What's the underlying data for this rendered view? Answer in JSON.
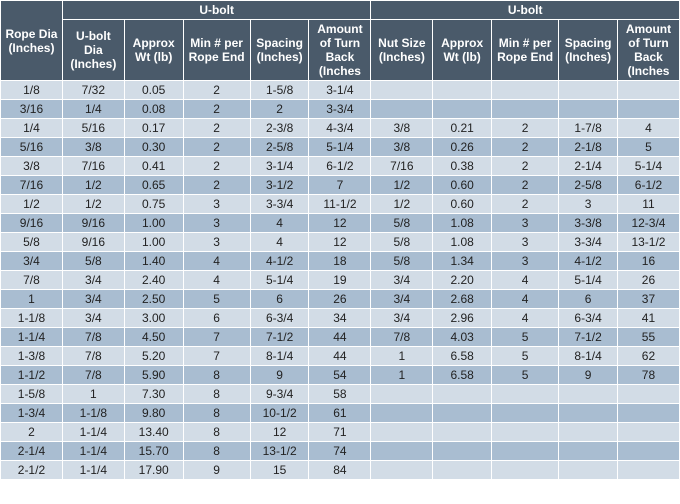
{
  "header": {
    "group1": "U-bolt",
    "group2": "U-bolt",
    "cols": [
      "Rope Dia (Inches)",
      "U-bolt Dia (Inches)",
      "Approx Wt (lb)",
      "Min # per Rope End",
      "Spacing (Inches)",
      "Amount of Turn Back (Inches",
      "Nut Size (Inches)",
      "Approx Wt (lb)",
      "Min # per Rope End",
      "Spacing (Inches)",
      "Amount of Turn Back (Inches"
    ]
  },
  "colors": {
    "header_bg": "#4a5a6a",
    "header_fg": "#ffffff",
    "row_odd": "#d2dce6",
    "row_even": "#a9bdd1",
    "border": "#ffffff"
  },
  "colWidths": [
    "58",
    "58",
    "55",
    "63",
    "55",
    "58",
    "58",
    "55",
    "63",
    "55",
    "58"
  ],
  "rows": [
    [
      "1/8",
      "7/32",
      "0.05",
      "2",
      "1-5/8",
      "3-1/4",
      "",
      "",
      "",
      "",
      ""
    ],
    [
      "3/16",
      "1/4",
      "0.08",
      "2",
      "2",
      "3-3/4",
      "",
      "",
      "",
      "",
      ""
    ],
    [
      "1/4",
      "5/16",
      "0.17",
      "2",
      "2-3/8",
      "4-3/4",
      "3/8",
      "0.21",
      "2",
      "1-7/8",
      "4"
    ],
    [
      "5/16",
      "3/8",
      "0.30",
      "2",
      "2-5/8",
      "5-1/4",
      "3/8",
      "0.26",
      "2",
      "2-1/8",
      "5"
    ],
    [
      "3/8",
      "7/16",
      "0.41",
      "2",
      "3-1/4",
      "6-1/2",
      "7/16",
      "0.38",
      "2",
      "2-1/4",
      "5-1/4"
    ],
    [
      "7/16",
      "1/2",
      "0.65",
      "2",
      "3-1/2",
      "7",
      "1/2",
      "0.60",
      "2",
      "2-5/8",
      "6-1/2"
    ],
    [
      "1/2",
      "1/2",
      "0.75",
      "3",
      "3-3/4",
      "11-1/2",
      "1/2",
      "0.60",
      "2",
      "3",
      "11"
    ],
    [
      "9/16",
      "9/16",
      "1.00",
      "3",
      "4",
      "12",
      "5/8",
      "1.08",
      "3",
      "3-3/8",
      "12-3/4"
    ],
    [
      "5/8",
      "9/16",
      "1.00",
      "3",
      "4",
      "12",
      "5/8",
      "1.08",
      "3",
      "3-3/4",
      "13-1/2"
    ],
    [
      "3/4",
      "5/8",
      "1.40",
      "4",
      "4-1/2",
      "18",
      "5/8",
      "1.34",
      "3",
      "4-1/2",
      "16"
    ],
    [
      "7/8",
      "3/4",
      "2.40",
      "4",
      "5-1/4",
      "19",
      "3/4",
      "2.20",
      "4",
      "5-1/4",
      "26"
    ],
    [
      "1",
      "3/4",
      "2.50",
      "5",
      "6",
      "26",
      "3/4",
      "2.68",
      "4",
      "6",
      "37"
    ],
    [
      "1-1/8",
      "3/4",
      "3.00",
      "6",
      "6-3/4",
      "34",
      "3/4",
      "2.96",
      "4",
      "6-3/4",
      "41"
    ],
    [
      "1-1/4",
      "7/8",
      "4.50",
      "7",
      "7-1/2",
      "44",
      "7/8",
      "4.03",
      "5",
      "7-1/2",
      "55"
    ],
    [
      "1-3/8",
      "7/8",
      "5.20",
      "7",
      "8-1/4",
      "44",
      "1",
      "6.58",
      "5",
      "8-1/4",
      "62"
    ],
    [
      "1-1/2",
      "7/8",
      "5.90",
      "8",
      "9",
      "54",
      "1",
      "6.58",
      "5",
      "9",
      "78"
    ],
    [
      "1-5/8",
      "1",
      "7.30",
      "8",
      "9-3/4",
      "58",
      "",
      "",
      "",
      "",
      ""
    ],
    [
      "1-3/4",
      "1-1/8",
      "9.80",
      "8",
      "10-1/2",
      "61",
      "",
      "",
      "",
      "",
      ""
    ],
    [
      "2",
      "1-1/4",
      "13.40",
      "8",
      "12",
      "71",
      "",
      "",
      "",
      "",
      ""
    ],
    [
      "2-1/4",
      "1-1/4",
      "15.70",
      "8",
      "13-1/2",
      "74",
      "",
      "",
      "",
      "",
      ""
    ],
    [
      "2-1/2",
      "1-1/4",
      "17.90",
      "9",
      "15",
      "84",
      "",
      "",
      "",
      "",
      ""
    ]
  ]
}
